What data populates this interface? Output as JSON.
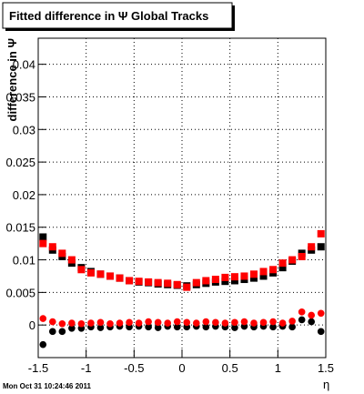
{
  "chart_data": {
    "type": "scatter",
    "title": "Fitted difference in Ψ   Global Tracks",
    "y_label": "difference in Ψ",
    "x_label": "η",
    "timestamp": "Mon Oct 31 10:24:46 2011",
    "xlim": [
      -1.5,
      1.5
    ],
    "ylim": [
      -0.005,
      0.044
    ],
    "xticks": [
      -1.5,
      -1,
      -0.5,
      0,
      0.5,
      1,
      1.5
    ],
    "yticks": [
      0,
      0.005,
      0.01,
      0.015,
      0.02,
      0.025,
      0.03,
      0.035,
      0.04
    ],
    "grid": true,
    "x": [
      -1.45,
      -1.35,
      -1.25,
      -1.15,
      -1.05,
      -0.95,
      -0.85,
      -0.75,
      -0.65,
      -0.55,
      -0.45,
      -0.35,
      -0.25,
      -0.15,
      -0.05,
      0.05,
      0.15,
      0.25,
      0.35,
      0.45,
      0.55,
      0.65,
      0.75,
      0.85,
      0.95,
      1.05,
      1.15,
      1.25,
      1.35,
      1.45
    ],
    "series": [
      {
        "color": "#000000",
        "marker": "square",
        "values": [
          0.0135,
          0.0115,
          0.0105,
          0.0095,
          0.0088,
          0.0082,
          0.0078,
          0.0075,
          0.0072,
          0.0068,
          0.0066,
          0.0065,
          0.0063,
          0.0062,
          0.0061,
          0.006,
          0.0062,
          0.0064,
          0.0066,
          0.0067,
          0.0068,
          0.007,
          0.0072,
          0.0075,
          0.008,
          0.0088,
          0.0098,
          0.011,
          0.0115,
          0.012
        ]
      },
      {
        "color": "#ff0000",
        "marker": "square",
        "values": [
          0.0125,
          0.012,
          0.011,
          0.01,
          0.0085,
          0.008,
          0.0078,
          0.0075,
          0.0072,
          0.0068,
          0.0067,
          0.0066,
          0.0065,
          0.0064,
          0.0062,
          0.0058,
          0.0065,
          0.0068,
          0.007,
          0.0073,
          0.0074,
          0.0075,
          0.0078,
          0.0082,
          0.0085,
          0.0095,
          0.01,
          0.0105,
          0.012,
          0.014
        ]
      },
      {
        "color": "#000000",
        "marker": "circle",
        "values": [
          -0.003,
          -0.001,
          -0.001,
          -0.0005,
          -0.0005,
          -0.0003,
          -0.0004,
          -0.0003,
          -0.0002,
          -0.0003,
          -0.0002,
          -0.0003,
          -0.0004,
          -0.0002,
          -0.0003,
          -0.0003,
          -0.0002,
          -0.0003,
          -0.0002,
          -0.0003,
          -0.0004,
          -0.0002,
          -0.0003,
          -0.0002,
          -0.0003,
          -0.0002,
          -0.0003,
          0.0008,
          0.0005,
          -0.001
        ]
      },
      {
        "color": "#ff0000",
        "marker": "circle",
        "values": [
          0.001,
          0.0005,
          0.0002,
          0.0003,
          0.0002,
          0.0003,
          0.0004,
          0.0002,
          0.0003,
          0.0004,
          0.0003,
          0.0005,
          0.0004,
          0.0003,
          0.0005,
          0.0004,
          0.0003,
          0.0005,
          0.0004,
          0.0003,
          0.0004,
          0.0005,
          0.0003,
          0.0004,
          0.0005,
          0.0003,
          0.0006,
          0.002,
          0.0015,
          0.0018
        ]
      }
    ]
  }
}
